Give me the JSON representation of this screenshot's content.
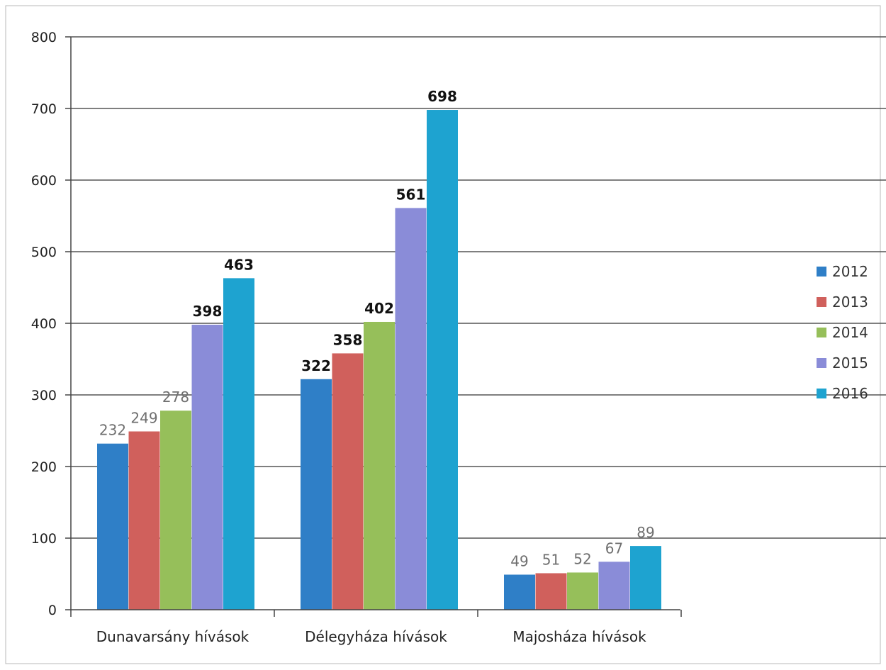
{
  "chart_data": {
    "type": "bar",
    "title": "",
    "xlabel": "",
    "ylabel": "",
    "categories": [
      "Dunavarsány hívások",
      "Délegyháza hívások",
      "Majosháza hívások"
    ],
    "series": [
      {
        "name": "2012",
        "color": "#2f7fc7",
        "values": [
          232,
          322,
          49
        ]
      },
      {
        "name": "2013",
        "color": "#d0605c",
        "values": [
          249,
          358,
          51
        ]
      },
      {
        "name": "2014",
        "color": "#96bf5a",
        "values": [
          278,
          402,
          52
        ]
      },
      {
        "name": "2015",
        "color": "#8a8cd8",
        "values": [
          398,
          561,
          67
        ]
      },
      {
        "name": "2016",
        "color": "#1ea3d0",
        "values": [
          463,
          698,
          89
        ]
      }
    ],
    "data_labels": [
      [
        "232",
        "322",
        "49"
      ],
      [
        "249",
        "358",
        "51"
      ],
      [
        "278",
        "402",
        "52"
      ],
      [
        "398",
        "561",
        "67"
      ],
      [
        "463",
        "698",
        "89"
      ]
    ],
    "ylim": [
      0,
      800
    ],
    "yticks": [
      0,
      100,
      200,
      300,
      400,
      500,
      600,
      700,
      800
    ],
    "ytick_labels": [
      "0",
      "100",
      "200",
      "300",
      "400",
      "500",
      "600",
      "700",
      "800"
    ],
    "grid": true,
    "legend_position": "right"
  }
}
